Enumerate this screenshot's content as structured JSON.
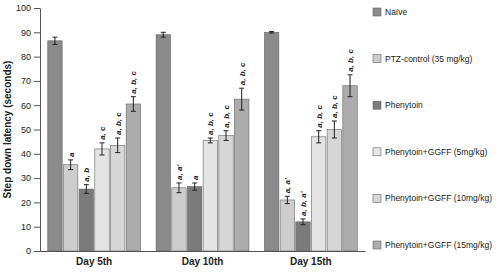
{
  "chart_data": {
    "type": "bar",
    "y_label": "Step down latency (seconds)",
    "categories": [
      "Day 5th",
      "Day 10th",
      "Day 15th"
    ],
    "series": [
      {
        "name": "Naïve",
        "color": "#8a8a8a",
        "values": [
          86.5,
          89,
          90
        ],
        "errors": [
          1.5,
          1,
          0.3
        ],
        "annotations": [
          null,
          null,
          null
        ]
      },
      {
        "name": "PTZ-control (35 mg/kg)",
        "color": "#cdcdcd",
        "values": [
          35.5,
          26,
          21
        ],
        "errors": [
          2,
          2,
          1.5
        ],
        "annotations": [
          "a",
          "a, a'",
          "a, a'"
        ]
      },
      {
        "name": "Phenytoin",
        "color": "#7b7b7b",
        "values": [
          25.5,
          26.5,
          12
        ],
        "errors": [
          1.8,
          1.5,
          1.2
        ],
        "annotations": [
          "a, b",
          "a",
          "a, b, a'"
        ]
      },
      {
        "name": "Phenytoin+GGFF (5mg/kg)",
        "color": "#e4e4e4",
        "values": [
          42,
          45.5,
          47
        ],
        "errors": [
          2.5,
          1,
          2.5
        ],
        "annotations": [
          "a, c",
          "a, b, c",
          "a, b, c"
        ]
      },
      {
        "name": "Phenytoin+GGFF (10mg/kg)",
        "color": "#d6d6d6",
        "values": [
          43.5,
          47.5,
          50
        ],
        "errors": [
          3,
          2,
          3.5
        ],
        "annotations": [
          "a, b, c",
          "a, b, c",
          "a, b, c"
        ]
      },
      {
        "name": "Phenytoin+GGFF (15mg/kg)",
        "color": "#acacac",
        "values": [
          60.5,
          62.5,
          68
        ],
        "errors": [
          3,
          4.5,
          4.5
        ],
        "annotations": [
          "a, b, c",
          "a, b, c",
          "a, b, c"
        ]
      }
    ],
    "ylim": [
      0,
      100
    ],
    "yticks": [
      0,
      10,
      20,
      30,
      40,
      50,
      60,
      70,
      80,
      90,
      100
    ],
    "legend": "right",
    "grid": false
  }
}
